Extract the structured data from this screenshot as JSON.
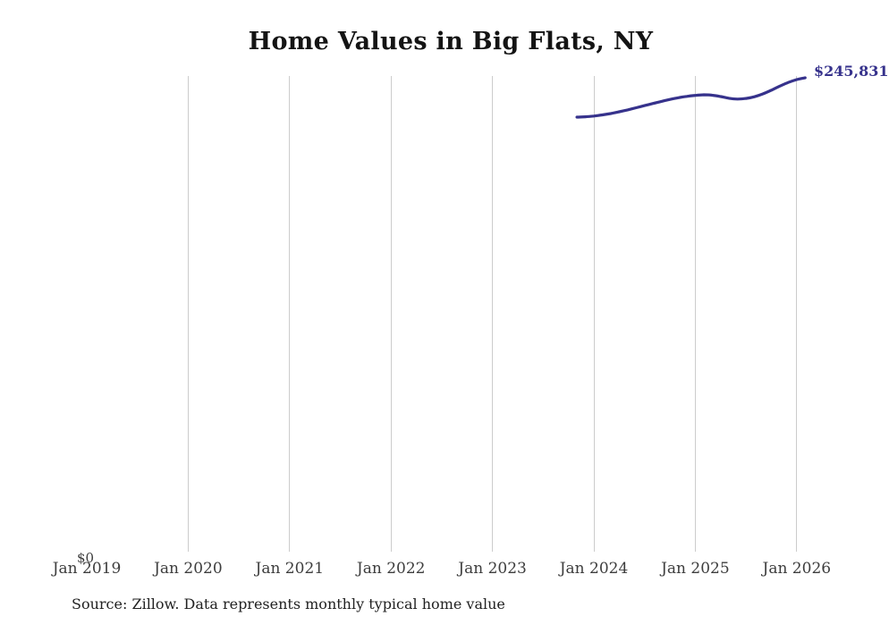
{
  "title": "Home Values in Big Flats, NY",
  "source_note": "Source: Zillow. Data represents monthly typical home value",
  "y_axis": {
    "zero_label": "$0"
  },
  "end_label": "$245,831",
  "colors": {
    "line": "#36328c",
    "end_label": "#36328c",
    "gridline": "#cccccc",
    "tick_text": "#3d3d3d",
    "title_text": "#141414",
    "source_text": "#222222"
  },
  "chart_data": {
    "type": "line",
    "title": "Home Values in Big Flats, NY",
    "series_name": "Monthly typical home value",
    "x": [
      "2023-11",
      "2023-12",
      "2024-01",
      "2024-02",
      "2024-03",
      "2024-04",
      "2024-05",
      "2024-06",
      "2024-07",
      "2024-08",
      "2024-09",
      "2024-10",
      "2024-11",
      "2024-12",
      "2025-01",
      "2025-02",
      "2025-03",
      "2025-04",
      "2025-05",
      "2025-06",
      "2025-07",
      "2025-08",
      "2025-09",
      "2025-10",
      "2025-11",
      "2025-12",
      "2026-01",
      "2026-02"
    ],
    "values": [
      225400,
      225600,
      226000,
      226600,
      227300,
      228200,
      229200,
      230300,
      231400,
      232500,
      233600,
      234600,
      235500,
      236200,
      236700,
      237000,
      236800,
      236100,
      235200,
      234800,
      235100,
      236000,
      237500,
      239400,
      241500,
      243400,
      244900,
      245831
    ],
    "x_tick_labels": [
      "Jan 2019",
      "Jan 2020",
      "Jan 2021",
      "Jan 2022",
      "Jan 2023",
      "Jan 2024",
      "Jan 2025",
      "Jan 2026"
    ],
    "y_axis_zero_label": "$0",
    "end_value_label": "$245,831",
    "xlabel": "",
    "ylabel": "",
    "ylim": [
      0,
      246800
    ],
    "grid": "vertical-only",
    "legend": "none"
  }
}
